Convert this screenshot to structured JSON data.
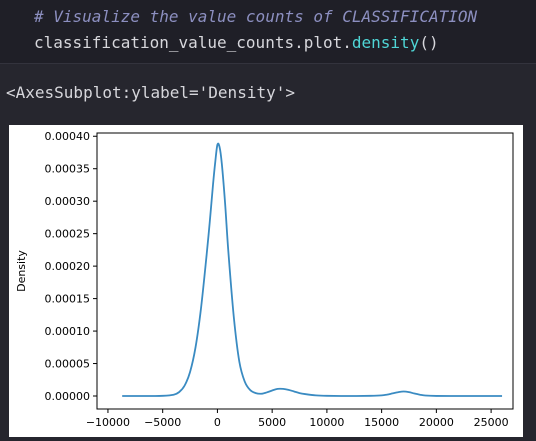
{
  "code_cell": {
    "comment": "# Visualize the value counts of CLASSIFICATION",
    "code_prefix": "classification_value_counts.plot.",
    "code_fn": "density",
    "code_suffix": "()"
  },
  "output": {
    "repr_text": "<AxesSubplot:ylabel='Density'>"
  },
  "colors": {
    "page_bg": "#26262e",
    "code_bg": "#1f1f27",
    "line": "#3a8bc2"
  },
  "chart_data": {
    "type": "line",
    "title": "",
    "xlabel": "",
    "ylabel": "Density",
    "xlim": [
      -11000,
      27000
    ],
    "ylim": [
      -2e-05,
      0.000405
    ],
    "xticks": [
      -10000,
      -5000,
      0,
      5000,
      10000,
      15000,
      20000,
      25000
    ],
    "xtick_labels": [
      "−10000",
      "−5000",
      "0",
      "5000",
      "10000",
      "15000",
      "20000",
      "25000"
    ],
    "yticks": [
      0,
      5e-05,
      0.0001,
      0.00015,
      0.0002,
      0.00025,
      0.0003,
      0.00035,
      0.0004
    ],
    "ytick_labels": [
      "0.00000",
      "0.00005",
      "0.00010",
      "0.00015",
      "0.00020",
      "0.00025",
      "0.00030",
      "0.00035",
      "0.00040"
    ],
    "grid": false,
    "legend": "none",
    "series": [
      {
        "x": [
          -8700,
          -6000,
          -5000,
          -4000,
          -3500,
          -3000,
          -2500,
          -2000,
          -1500,
          -1000,
          -700,
          -400,
          -200,
          0,
          200,
          400,
          700,
          1000,
          1500,
          2000,
          2500,
          3000,
          3500,
          4000,
          4500,
          5000,
          5500,
          6000,
          6500,
          7000,
          7500,
          8000,
          9000,
          10000,
          12000,
          14000,
          15000,
          15500,
          16000,
          16500,
          17000,
          17500,
          18000,
          18500,
          19000,
          20000,
          22000,
          24000,
          26000
        ],
        "y": [
          0,
          0,
          3e-07,
          2e-06,
          6e-06,
          1.6e-05,
          3.7e-05,
          7.5e-05,
          0.000135,
          0.000215,
          0.000268,
          0.000326,
          0.00036,
          0.000387,
          0.000383,
          0.000358,
          0.000297,
          0.000222,
          0.000121,
          5.3e-05,
          2.2e-05,
          9e-06,
          4.5e-06,
          3.5e-06,
          5.5e-06,
          8.5e-06,
          1.1e-05,
          1.1e-05,
          9.5e-06,
          7e-06,
          4.5e-06,
          3e-06,
          1e-06,
          3e-07,
          0,
          3e-07,
          1e-06,
          2.2e-06,
          4e-06,
          5.8e-06,
          7e-06,
          6e-06,
          3.8e-06,
          2e-06,
          8e-07,
          1e-07,
          0,
          0,
          0
        ]
      }
    ]
  }
}
